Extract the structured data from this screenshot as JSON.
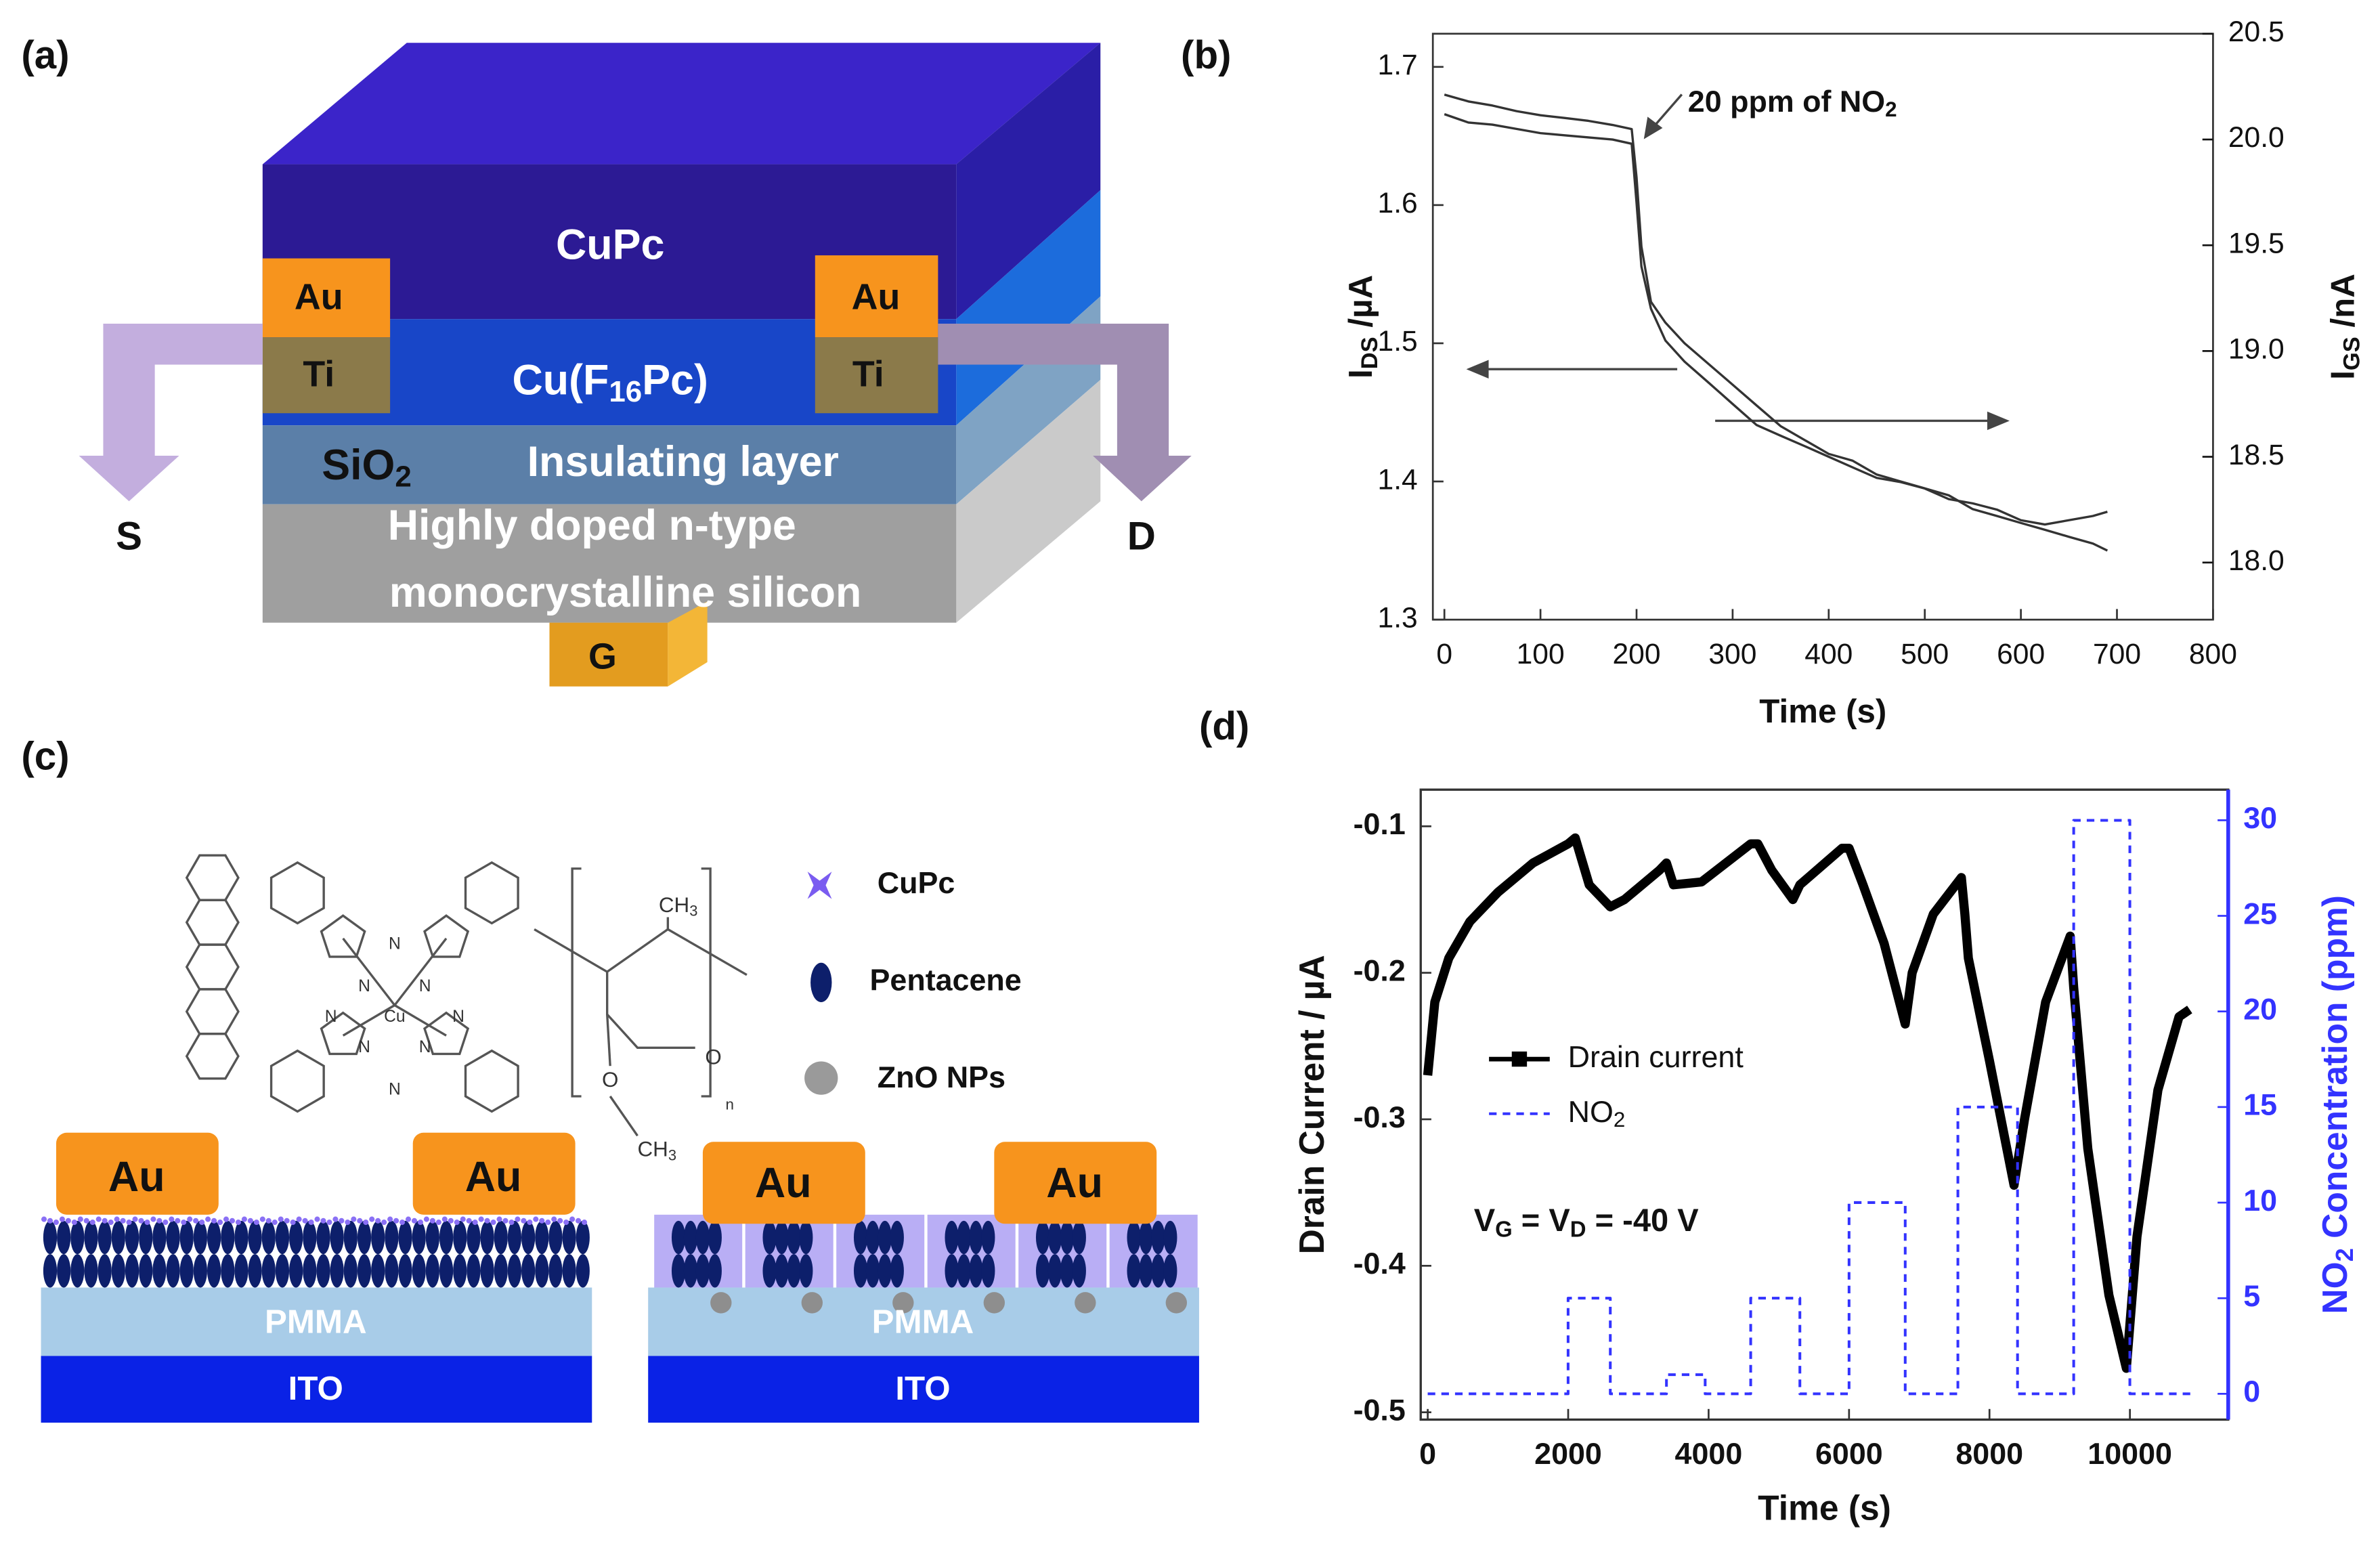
{
  "panel_labels": [
    "(a)",
    "(b)",
    "(c)",
    "(d)"
  ],
  "device_a": {
    "top_layer": "CuPc",
    "channel_layer": [
      "Cu(F",
      "16",
      "Pc)"
    ],
    "oxide": [
      "SiO",
      "2"
    ],
    "insulator": "Insulating layer",
    "substrate": [
      "Highly doped n-type",
      "monocrystalline silicon"
    ],
    "contacts": [
      "Au",
      "Ti",
      "Au",
      "Ti"
    ],
    "terminals": {
      "source": "S",
      "drain": "D",
      "gate": "G"
    }
  },
  "device_c": {
    "cupc_atoms": [
      "N",
      "N",
      "N",
      "N",
      "N",
      "N",
      "N",
      "N",
      "Cu"
    ],
    "pmma_labels": [
      [
        "CH",
        "3"
      ],
      "O",
      "O",
      [
        "CH",
        "3"
      ],
      "n"
    ],
    "legend": [
      "CuPc",
      "Pentacene",
      "ZnO NPs"
    ],
    "left_device": {
      "contacts": [
        "Au",
        "Au"
      ],
      "dielectric": "PMMA",
      "electrode": "ITO"
    },
    "right_device": {
      "contacts": [
        "Au",
        "Au"
      ],
      "dielectric": "PMMA",
      "electrode": "ITO"
    }
  },
  "chart_data": [
    {
      "type": "line",
      "x": [
        0,
        25,
        50,
        75,
        100,
        125,
        150,
        175,
        195,
        200,
        205,
        215,
        230,
        250,
        275,
        300,
        325,
        350,
        375,
        400,
        425,
        450,
        475,
        500,
        525,
        550,
        575,
        600,
        625,
        650,
        675,
        690
      ],
      "series": [
        {
          "color": "#333333",
          "values": [
            1.68,
            1.675,
            1.672,
            1.668,
            1.665,
            1.663,
            1.661,
            1.658,
            1.655,
            1.62,
            1.57,
            1.53,
            1.515,
            1.5,
            1.485,
            1.47,
            1.455,
            1.44,
            1.43,
            1.42,
            1.415,
            1.405,
            1.4,
            1.395,
            1.39,
            1.38,
            1.375,
            1.37,
            1.365,
            1.36,
            1.355,
            1.35
          ]
        },
        {
          "color": "#333333",
          "axis": "y2",
          "values": [
            20.12,
            20.08,
            20.07,
            20.05,
            20.03,
            20.02,
            20.01,
            20.0,
            19.98,
            19.7,
            19.4,
            19.2,
            19.05,
            18.95,
            18.85,
            18.75,
            18.65,
            18.6,
            18.55,
            18.5,
            18.45,
            18.4,
            18.38,
            18.35,
            18.3,
            18.28,
            18.25,
            18.2,
            18.18,
            18.2,
            18.22,
            18.24
          ]
        }
      ],
      "xlim": [
        -12,
        800
      ],
      "ylim": [
        1.3,
        1.724
      ],
      "y2lim": [
        17.73,
        20.5
      ],
      "xticks": [
        0,
        100,
        200,
        300,
        400,
        500,
        600,
        700,
        800
      ],
      "yticks": [
        1.3,
        1.4,
        1.5,
        1.6,
        1.7
      ],
      "y2ticks": [
        {
          "value": 18,
          "label": "18.0"
        },
        18.5,
        {
          "value": 19,
          "label": "19.0"
        },
        19.5,
        {
          "value": 20,
          "label": "20.0"
        },
        20.5
      ],
      "xlabel": "Time (s)",
      "ylabel": [
        "I",
        "DS",
        " /µA"
      ],
      "y2label": [
        "I",
        "GS",
        " /nA"
      ],
      "annotation": [
        "20 ppm of NO",
        "2"
      ]
    },
    {
      "type": "line",
      "series": [
        {
          "name": "Drain current",
          "color": "#000000",
          "x": [
            0,
            100,
            300,
            600,
            1000,
            1500,
            2000,
            2100,
            2300,
            2600,
            2800,
            3300,
            3400,
            3500,
            3900,
            4600,
            4700,
            4900,
            5200,
            5300,
            5900,
            6000,
            6200,
            6500,
            6800,
            6900,
            7200,
            7600,
            7650,
            7700,
            8000,
            8350,
            8500,
            8800,
            9150,
            9200,
            9400,
            9700,
            9950,
            10100,
            10400,
            10700,
            10850
          ],
          "values": [
            -0.27,
            -0.22,
            -0.19,
            -0.165,
            -0.145,
            -0.125,
            -0.112,
            -0.108,
            -0.14,
            -0.155,
            -0.15,
            -0.13,
            -0.125,
            -0.14,
            -0.138,
            -0.112,
            -0.112,
            -0.13,
            -0.15,
            -0.14,
            -0.115,
            -0.115,
            -0.14,
            -0.18,
            -0.235,
            -0.2,
            -0.16,
            -0.135,
            -0.16,
            -0.19,
            -0.26,
            -0.345,
            -0.3,
            -0.22,
            -0.175,
            -0.21,
            -0.32,
            -0.42,
            -0.47,
            -0.38,
            -0.28,
            -0.23,
            -0.225
          ]
        },
        {
          "name": [
            "NO",
            "2"
          ],
          "color": "#3333ff",
          "axis": "y2",
          "style": "dashed",
          "x": [
            0,
            2000,
            2000,
            2600,
            2600,
            3400,
            3400,
            3950,
            3950,
            4600,
            4600,
            5300,
            5300,
            6000,
            6000,
            6800,
            6800,
            7550,
            7550,
            8400,
            8400,
            9200,
            9200,
            10000,
            10000,
            10900
          ],
          "values": [
            0,
            0,
            5,
            5,
            0,
            0,
            1,
            1,
            0,
            0,
            5,
            5,
            0,
            0,
            10,
            10,
            0,
            0,
            15,
            15,
            0,
            0,
            30,
            30,
            0,
            0
          ]
        }
      ],
      "xlim": [
        -100,
        11400
      ],
      "ylim": [
        -0.505,
        -0.075
      ],
      "y2lim": [
        -1.35,
        31.6
      ],
      "xticks": [
        0,
        2000,
        4000,
        6000,
        8000,
        10000
      ],
      "yticks": [
        -0.5,
        -0.4,
        -0.3,
        -0.2,
        -0.1
      ],
      "y2ticks": [
        0,
        5,
        10,
        15,
        20,
        25,
        30
      ],
      "y2_color": "#3333ff",
      "xlabel": "Time (s)",
      "ylabel": "Drain Current  / µA",
      "y2label": [
        "NO",
        "2",
        " Concentration (ppm)"
      ],
      "legend": "center-left",
      "annotation": [
        "V",
        "G",
        " = V",
        "D",
        " = -40 V"
      ]
    }
  ]
}
